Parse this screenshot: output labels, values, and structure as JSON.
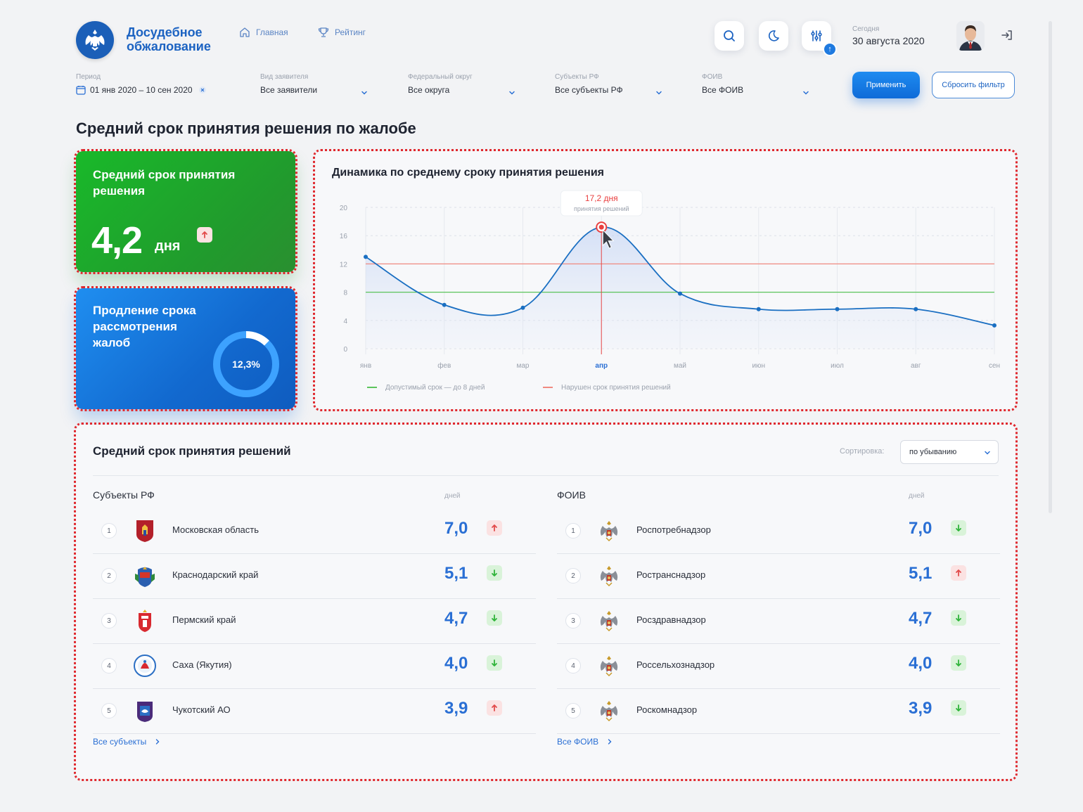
{
  "header": {
    "brand": "Досудебное обжалование",
    "nav": [
      {
        "label": "Главная",
        "icon": "home-icon"
      },
      {
        "label": "Рейтинг",
        "icon": "trophy-icon"
      }
    ],
    "today_label": "Сегодня",
    "today_value": "30 августа 2020",
    "filter_badge": "↑"
  },
  "filters": {
    "period": {
      "label": "Период",
      "value": "01 янв 2020 – 10 сен 2020"
    },
    "applicant": {
      "label": "Вид заявителя",
      "value": "Все заявители"
    },
    "district": {
      "label": "Федеральный округ",
      "value": "Все округа"
    },
    "subject": {
      "label": "Субъекты РФ",
      "value": "Все субъекты РФ"
    },
    "foiv": {
      "label": "ФОИВ",
      "value": "Все ФОИВ"
    },
    "apply": "Применить",
    "reset": "Сбросить фильтр"
  },
  "page_title": "Средний срок принятия решения по жалобе",
  "card_avg": {
    "title": "Средний срок принятия решения",
    "value": "4,2",
    "unit": "дня",
    "trend": "up"
  },
  "card_ext": {
    "title": "Продление срока рассмотрения жалоб",
    "percent_label": "12,3%",
    "percent": 12.3
  },
  "chart": {
    "title": "Динамика по среднему сроку принятия решения",
    "tooltip_value": "17,2 дня",
    "tooltip_sub": "принятия решений",
    "legend_allowed": "Допустимый срок — до 8 дней",
    "legend_violated": "Нарушен срок принятия решений"
  },
  "chart_data": {
    "type": "line",
    "title": "Динамика по среднему сроку принятия решения",
    "categories": [
      "янв",
      "фев",
      "мар",
      "апр",
      "май",
      "июн",
      "июл",
      "авг",
      "сен"
    ],
    "series": [
      {
        "values": [
          13,
          6.2,
          5.8,
          17.2,
          7.8,
          5.6,
          5.6,
          5.6,
          3.3
        ]
      }
    ],
    "thresholds": [
      {
        "name": "Допустимый срок — до 8 дней",
        "value": 8,
        "color": "#5cc45c"
      },
      {
        "name": "Нарушен срок принятия решений",
        "value": 12,
        "color": "#f08a80"
      }
    ],
    "highlight_index": 3,
    "yticks": [
      0,
      4,
      8,
      12,
      16,
      20
    ],
    "ylim": [
      0,
      20
    ],
    "grid": true,
    "legend_position": "bottom-left",
    "line_color": "#1a6fc2",
    "highlight_color": "#e94040"
  },
  "table": {
    "title": "Средний срок принятия решений",
    "sort_label": "Сортировка:",
    "sort_value": "по убыванию",
    "left": {
      "title": "Субъекты РФ",
      "unit": "дней",
      "link": "Все субъекты",
      "rows": [
        {
          "rank": "1",
          "name": "Московская область",
          "value": "7,0",
          "trend": "up",
          "emblem": "moscow-region-emblem-icon"
        },
        {
          "rank": "2",
          "name": "Краснодарский край",
          "value": "5,1",
          "trend": "down",
          "emblem": "krasnodar-emblem-icon"
        },
        {
          "rank": "3",
          "name": "Пермский край",
          "value": "4,7",
          "trend": "down",
          "emblem": "perm-emblem-icon"
        },
        {
          "rank": "4",
          "name": "Саха (Якутия)",
          "value": "4,0",
          "trend": "down",
          "emblem": "yakutia-emblem-icon"
        },
        {
          "rank": "5",
          "name": "Чукотский АО",
          "value": "3,9",
          "trend": "up",
          "emblem": "chukotka-emblem-icon"
        }
      ]
    },
    "right": {
      "title": "ФОИВ",
      "unit": "дней",
      "link": "Все ФОИВ",
      "rows": [
        {
          "rank": "1",
          "name": "Роспотребнадзор",
          "value": "7,0",
          "trend": "down",
          "emblem": "eagle-emblem-icon"
        },
        {
          "rank": "2",
          "name": "Ространснадзор",
          "value": "5,1",
          "trend": "up",
          "emblem": "eagle-emblem-icon"
        },
        {
          "rank": "3",
          "name": "Росздравнадзор",
          "value": "4,7",
          "trend": "down",
          "emblem": "eagle-emblem-icon"
        },
        {
          "rank": "4",
          "name": "Россельхознадзор",
          "value": "4,0",
          "trend": "down",
          "emblem": "eagle-emblem-icon"
        },
        {
          "rank": "5",
          "name": "Роскомнадзор",
          "value": "3,9",
          "trend": "down",
          "emblem": "eagle-emblem-icon"
        }
      ]
    }
  },
  "colors": {
    "accent": "#1c63c2",
    "green_card": "#1fa82c",
    "blue_card": "#1478dc",
    "trend_up_bg": "#fbe2e2",
    "trend_up": "#e24b4b",
    "trend_down_bg": "#d9f3d9",
    "trend_down": "#2fb43a",
    "highlight_outline": "#e0282e"
  }
}
